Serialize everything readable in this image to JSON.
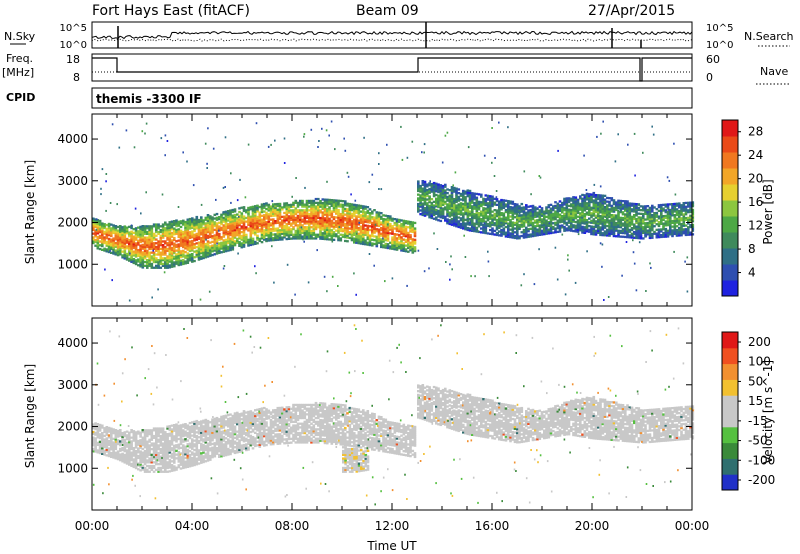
{
  "header": {
    "station": "Fort Hays East (fitACF)",
    "beam": "Beam 09",
    "date": "27/Apr/2015"
  },
  "strips": {
    "nsky_label": "N.Sky",
    "nsky_top_tick": "10^5",
    "nsky_bottom_tick": "10^0",
    "nsearch_top_tick": "10^5",
    "nsearch_bottom_tick": "10^0",
    "nsearch_label": "N.Search",
    "freq_label_line1": "Freq.",
    "freq_label_line2": "[MHz]",
    "freq_top_tick": "18",
    "freq_bottom_tick": "8",
    "nave_top_tick": "60",
    "nave_bottom_tick": "0",
    "nave_label": "Nave",
    "cpid_label": "CPID",
    "cpid_text": "themis -3300 IF"
  },
  "chart_data": [
    {
      "type": "heatmap",
      "name": "Power",
      "ylabel": "Slant Range [km]",
      "xlabel": "",
      "y_ticks": [
        "1000",
        "2000",
        "3000",
        "4000"
      ],
      "ylim": [
        0,
        4600
      ],
      "xlim": [
        0,
        24
      ],
      "grid": false,
      "colorbar": {
        "label": "Power [dB]",
        "ticks": [
          "4",
          "8",
          "12",
          "16",
          "20",
          "24",
          "28"
        ],
        "range": [
          0,
          30
        ],
        "colors": [
          "#1f22e0",
          "#2e4fb0",
          "#2f6f86",
          "#3f8a5c",
          "#4da845",
          "#8cc63f",
          "#e6d030",
          "#f2a628",
          "#f07820",
          "#ea4a18",
          "#e01818"
        ]
      },
      "bands": [
        {
          "t": [
            0.0,
            1.0,
            2.0,
            3.0,
            4.0,
            5.0,
            6.0,
            7.0,
            8.0,
            9.0,
            10.0,
            11.0,
            12.0,
            12.9
          ],
          "lo": [
            1400,
            1200,
            900,
            900,
            1050,
            1250,
            1400,
            1550,
            1600,
            1600,
            1550,
            1450,
            1350,
            1250
          ],
          "hi": [
            2100,
            1900,
            1900,
            2000,
            2100,
            2200,
            2350,
            2450,
            2500,
            2550,
            2500,
            2350,
            2100,
            2000
          ],
          "value": 20
        },
        {
          "t": [
            13.0,
            14.0,
            15.0,
            16.0,
            17.0,
            18.0,
            19.0,
            20.0,
            21.0,
            22.0,
            23.0,
            24.0
          ],
          "lo": [
            2200,
            2000,
            1800,
            1700,
            1600,
            1700,
            1800,
            1700,
            1650,
            1600,
            1650,
            1700
          ],
          "hi": [
            3000,
            2900,
            2750,
            2600,
            2450,
            2350,
            2600,
            2700,
            2550,
            2400,
            2450,
            2500
          ],
          "value": 10
        }
      ]
    },
    {
      "type": "heatmap",
      "name": "Velocity",
      "ylabel": "Slant Range [km]",
      "xlabel": "Time UT",
      "x_ticks": [
        "00:00",
        "04:00",
        "08:00",
        "12:00",
        "16:00",
        "20:00",
        "00:00"
      ],
      "y_ticks": [
        "1000",
        "2000",
        "3000",
        "4000"
      ],
      "ylim": [
        0,
        4600
      ],
      "xlim": [
        0,
        24
      ],
      "grid": false,
      "colorbar": {
        "label": "Velocity [m s^-1]",
        "ticks": [
          "200",
          "100",
          "50",
          "15",
          "-15",
          "-50",
          "-100",
          "-200"
        ],
        "range": [
          -250,
          250
        ],
        "colors": [
          "#2030c8",
          "#2f6f6f",
          "#3a8a3a",
          "#55c040",
          "#c8c8c8",
          "#c8c8c8",
          "#f2c030",
          "#f29030",
          "#f05020",
          "#e01818"
        ]
      },
      "bands": [
        {
          "t": [
            0.0,
            1.0,
            2.0,
            3.0,
            4.0,
            5.0,
            6.0,
            7.0,
            8.0,
            9.0,
            10.0,
            11.0,
            12.0,
            12.9
          ],
          "lo": [
            1400,
            1200,
            900,
            900,
            1050,
            1250,
            1400,
            1550,
            1600,
            1600,
            1550,
            1450,
            1350,
            1250
          ],
          "hi": [
            2100,
            1900,
            1900,
            2000,
            2100,
            2200,
            2350,
            2450,
            2500,
            2550,
            2500,
            2350,
            2100,
            2000
          ],
          "value": 0
        },
        {
          "t": [
            13.0,
            14.0,
            15.0,
            16.0,
            17.0,
            18.0,
            19.0,
            20.0,
            21.0,
            22.0,
            23.0,
            24.0
          ],
          "lo": [
            2200,
            2000,
            1800,
            1700,
            1600,
            1700,
            1800,
            1700,
            1650,
            1600,
            1650,
            1700
          ],
          "hi": [
            3000,
            2900,
            2750,
            2600,
            2450,
            2350,
            2600,
            2700,
            2550,
            2400,
            2450,
            2500
          ],
          "value": 0
        },
        {
          "t": [
            10.0,
            10.5,
            11.0
          ],
          "lo": [
            900,
            900,
            950
          ],
          "hi": [
            1500,
            1450,
            1400
          ],
          "value": 40
        }
      ]
    }
  ]
}
